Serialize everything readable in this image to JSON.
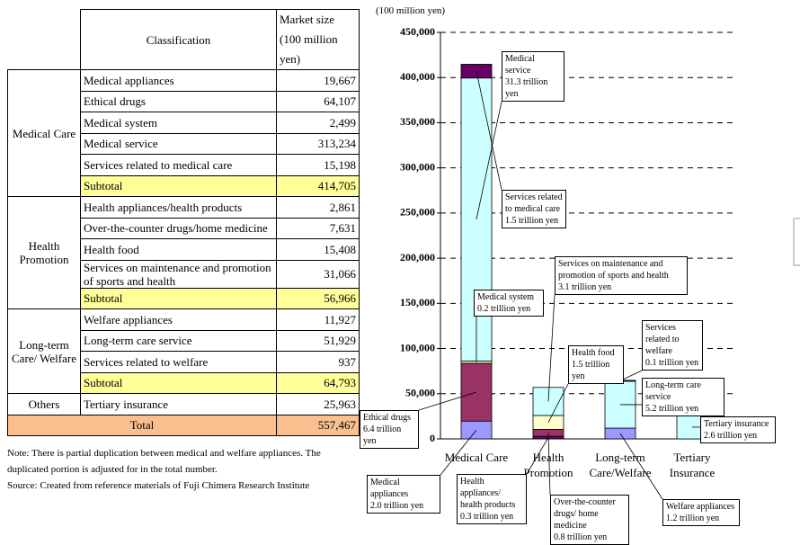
{
  "table": {
    "header": [
      "Classification",
      "Market size (100 million yen)"
    ],
    "groups": [
      {
        "name": "Medical Care",
        "rows": [
          [
            "Medical appliances",
            "19,667"
          ],
          [
            "Ethical drugs",
            "64,107"
          ],
          [
            "Medical system",
            "2,499"
          ],
          [
            "Medical service",
            "313,234"
          ],
          [
            "Services related to medical care",
            "15,198"
          ],
          [
            "Subtotal",
            "414,705"
          ]
        ]
      },
      {
        "name": "Health Promotion",
        "rows": [
          [
            "Health appliances/health products",
            "2,861"
          ],
          [
            "Over-the-counter drugs/home medicine",
            "7,631"
          ],
          [
            "Health food",
            "15,408"
          ],
          [
            "Services on maintenance and promotion of sports and health",
            "31,066"
          ],
          [
            "Subtotal",
            "56,966"
          ]
        ]
      },
      {
        "name": "Long-term Care/ Welfare",
        "rows": [
          [
            "Welfare appliances",
            "11,927"
          ],
          [
            "Long-term care service",
            "51,929"
          ],
          [
            "Services related to welfare",
            "937"
          ],
          [
            "Subtotal",
            "64,793"
          ]
        ]
      },
      {
        "name": "Others",
        "rows": [
          [
            "Tertiary insurance",
            "25,963"
          ]
        ]
      }
    ],
    "total": [
      "Total",
      "557,467"
    ],
    "notes": [
      "Note: There is partial duplication between medical and welfare appliances. The duplicated portion is adjusted for in the total number.",
      "Source: Created from reference materials of Fuji Chimera Research Institute"
    ]
  },
  "chart_data": {
    "type": "stacked_bar",
    "y_label": "(100 million yen)",
    "categories": [
      "Medical Care",
      "Health Promotion",
      "Long-term Care/Welfare",
      "Tertiary Insurance"
    ],
    "ylim": [
      0,
      450000
    ],
    "yticks": [
      0,
      {
        "value": 50000,
        "label": "50,000"
      },
      {
        "value": 100000,
        "label": "100,000"
      },
      {
        "value": 150000,
        "label": "150,000"
      },
      {
        "value": 200000,
        "label": "200,000"
      },
      {
        "value": 250000,
        "label": "250,000"
      },
      {
        "value": 300000,
        "label": "300,000"
      },
      {
        "value": 350000,
        "label": "350,000"
      },
      {
        "value": 400000,
        "label": "400,000"
      },
      {
        "value": 450000,
        "label": "450,000"
      }
    ],
    "grid": true,
    "series": [
      {
        "name": "Medical appliances",
        "color": "#9999ff",
        "values": [
          19667,
          null,
          null,
          null
        ],
        "value_labels": [
          "2.0 trillion yen",
          null,
          null,
          null
        ]
      },
      {
        "name": "Ethical drugs",
        "color": "#993366",
        "values": [
          64107,
          null,
          null,
          null
        ],
        "value_labels": [
          "6.4 trillion yen",
          null,
          null,
          null
        ]
      },
      {
        "name": "Medical system",
        "color": "#ffffcc",
        "values": [
          2499,
          null,
          null,
          null
        ],
        "value_labels": [
          "0.2 trillion yen",
          null,
          null,
          null
        ]
      },
      {
        "name": "Medical service",
        "color": "#ccffff",
        "values": [
          313234,
          null,
          null,
          null
        ],
        "value_labels": [
          "31.3 trillion yen",
          null,
          null,
          null
        ]
      },
      {
        "name": "Services related to medical care",
        "color": "#660066",
        "values": [
          15198,
          null,
          null,
          null
        ],
        "value_labels": [
          "1.5 trillion yen",
          null,
          null,
          null
        ]
      },
      {
        "name": "Health appliances/ health products",
        "color": "#660066",
        "values": [
          null,
          2861,
          null,
          null
        ],
        "value_labels": [
          null,
          "0.3 trillion yen",
          null,
          null
        ]
      },
      {
        "name": "Over-the-counter drugs/ home medicine",
        "color": "#993366",
        "values": [
          null,
          7631,
          null,
          null
        ],
        "value_labels": [
          null,
          "0.8 trillion yen",
          null,
          null
        ]
      },
      {
        "name": "Health food",
        "color": "#ffffcc",
        "values": [
          null,
          15408,
          null,
          null
        ],
        "value_labels": [
          null,
          "1.5 trillion yen",
          null,
          null
        ]
      },
      {
        "name": "Services on maintenance and promotion of sports and health",
        "color": "#ccffff",
        "values": [
          null,
          31066,
          null,
          null
        ],
        "value_labels": [
          null,
          "3.1 trillion yen",
          null,
          null
        ]
      },
      {
        "name": "Welfare appliances",
        "color": "#9999ff",
        "values": [
          null,
          null,
          11927,
          null
        ],
        "value_labels": [
          null,
          null,
          "1.2 trillion yen",
          null
        ]
      },
      {
        "name": "Long-term care service",
        "color": "#ccffff",
        "values": [
          null,
          null,
          51929,
          null
        ],
        "value_labels": [
          null,
          null,
          "5.2 trillion yen",
          null
        ]
      },
      {
        "name": "Services related to welfare",
        "color": "#660066",
        "values": [
          null,
          null,
          937,
          null
        ],
        "value_labels": [
          null,
          null,
          "0.1 trillion yen",
          null
        ]
      },
      {
        "name": "Tertiary insurance",
        "color": "#ccffff",
        "values": [
          null,
          null,
          null,
          25963
        ],
        "value_labels": [
          null,
          null,
          null,
          "2.6 trillion yen"
        ]
      }
    ]
  }
}
